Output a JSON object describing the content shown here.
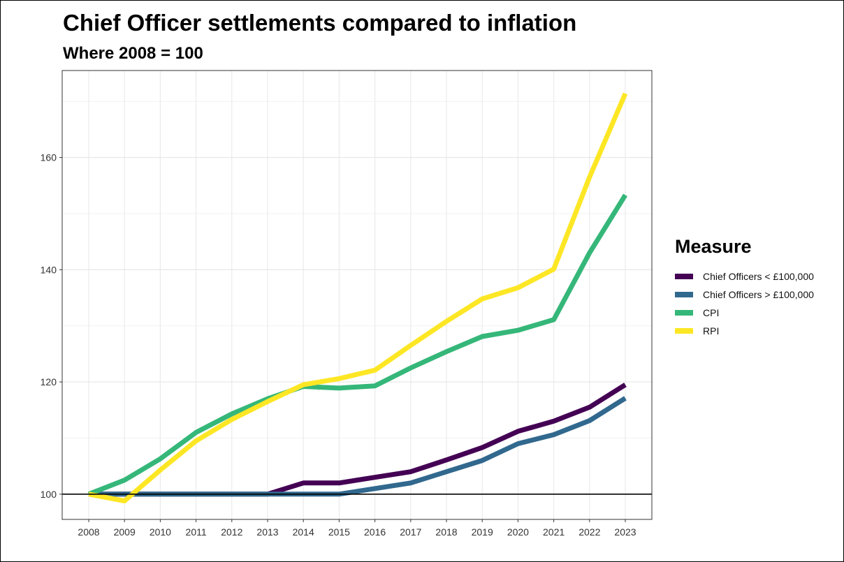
{
  "chart_data": {
    "type": "line",
    "title": "Chief Officer settlements compared to inflation",
    "subtitle": "Where 2008 = 100",
    "xlabel": "",
    "ylabel": "",
    "x": [
      "2008",
      "2009",
      "2010",
      "2011",
      "2012",
      "2013",
      "2014",
      "2015",
      "2016",
      "2017",
      "2018",
      "2019",
      "2020",
      "2021",
      "2022",
      "2023"
    ],
    "yticks": [
      100,
      120,
      140,
      160
    ],
    "ylim": [
      95.5,
      175.5
    ],
    "reference_line": 100,
    "grid": true,
    "legend": {
      "title": "Measure",
      "position": "right"
    },
    "series": [
      {
        "name": "Chief Officers < £100,000",
        "color": "#440154",
        "values": [
          100,
          100,
          100,
          100,
          100,
          100,
          102,
          102,
          103,
          104,
          106.1,
          108.3,
          111.2,
          113,
          115.5,
          119.5
        ]
      },
      {
        "name": "Chief Officers > £100,000",
        "color": "#31688e",
        "values": [
          100,
          100,
          100,
          100,
          100,
          100,
          100,
          100,
          101,
          102,
          104,
          106,
          109,
          110.6,
          113.1,
          117.1
        ]
      },
      {
        "name": "CPI",
        "color": "#35b779",
        "values": [
          100,
          102.5,
          106.3,
          111,
          114.3,
          117,
          119.2,
          118.9,
          119.3,
          122.5,
          125.4,
          128.1,
          129.2,
          131.1,
          143,
          153.3
        ]
      },
      {
        "name": "RPI",
        "color": "#fde725",
        "values": [
          100,
          98.8,
          104.3,
          109.5,
          113.3,
          116.5,
          119.5,
          120.6,
          122.1,
          126.5,
          130.8,
          134.8,
          136.8,
          140.1,
          156.5,
          171.4
        ]
      }
    ]
  }
}
